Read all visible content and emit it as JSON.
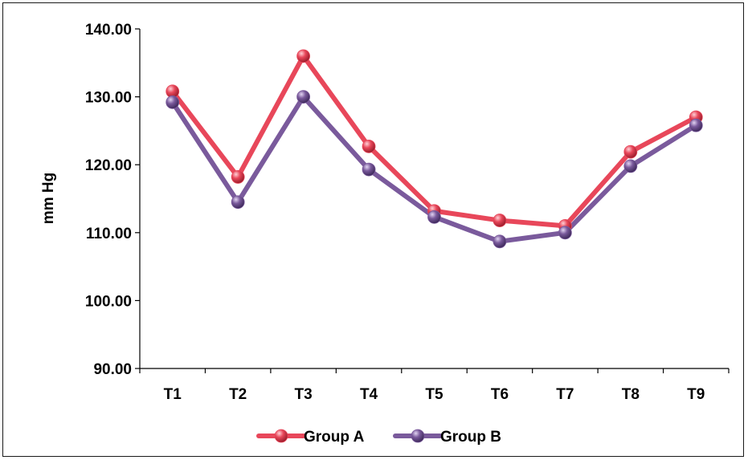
{
  "chart_data": {
    "type": "line",
    "title": "",
    "xlabel": "",
    "ylabel": "mm Hg",
    "categories": [
      "T1",
      "T2",
      "T3",
      "T4",
      "T5",
      "T6",
      "T7",
      "T8",
      "T9"
    ],
    "ylim": [
      90,
      140
    ],
    "yticks": [
      90,
      100,
      110,
      120,
      130,
      140
    ],
    "ytick_labels": [
      "90.00",
      "100.00",
      "110.00",
      "120.00",
      "130.00",
      "140.00"
    ],
    "grid": false,
    "legend_position": "bottom",
    "series": [
      {
        "name": "Group A",
        "color": "#e8475a",
        "values": [
          130.8,
          118.2,
          136.0,
          122.7,
          113.2,
          111.8,
          111.0,
          121.9,
          127.0
        ]
      },
      {
        "name": "Group B",
        "color": "#7a5a9c",
        "values": [
          129.2,
          114.5,
          130.0,
          119.3,
          112.3,
          108.7,
          110.0,
          119.8,
          125.8
        ]
      }
    ]
  }
}
